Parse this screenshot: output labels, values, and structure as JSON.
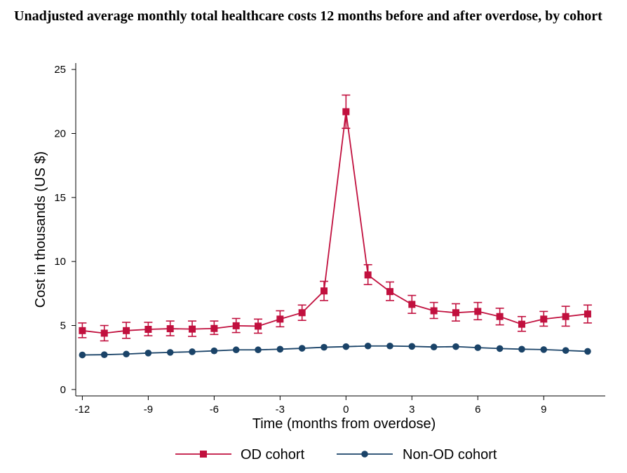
{
  "title": "Unadjusted average monthly total healthcare costs 12 months before and after overdose, by cohort",
  "chart_data": {
    "type": "line",
    "xlabel": "Time (months from overdose)",
    "ylabel": "Cost in thousands (US $)",
    "x": [
      -12,
      -11,
      -10,
      -9,
      -8,
      -7,
      -6,
      -5,
      -4,
      -3,
      -2,
      -1,
      0,
      1,
      2,
      3,
      4,
      5,
      6,
      7,
      8,
      9,
      10,
      11
    ],
    "xticks": [
      -12,
      -9,
      -6,
      -3,
      0,
      3,
      6,
      9
    ],
    "xtick_labels": [
      "-12",
      "-9",
      "-6",
      "-3",
      "0",
      "3",
      "6",
      "9"
    ],
    "xlim": [
      -12.3,
      11.8
    ],
    "yticks": [
      0,
      5,
      10,
      15,
      20,
      25
    ],
    "ytick_labels": [
      "0",
      "5",
      "10",
      "15",
      "20",
      "25"
    ],
    "ylim": [
      -0.5,
      25.5
    ],
    "grid": false,
    "legend_position": "bottom",
    "series": [
      {
        "name": "OD cohort",
        "color": "#c1103e",
        "marker": "square",
        "values": [
          4.6,
          4.4,
          4.6,
          4.7,
          4.75,
          4.72,
          4.77,
          4.98,
          4.95,
          5.5,
          6.0,
          7.7,
          21.7,
          8.95,
          7.65,
          6.65,
          6.15,
          6.0,
          6.1,
          5.7,
          5.1,
          5.5,
          5.7,
          5.9
        ],
        "ci_low": [
          4.05,
          3.8,
          4.0,
          4.2,
          4.2,
          4.15,
          4.3,
          4.45,
          4.4,
          4.9,
          5.4,
          6.95,
          20.4,
          8.2,
          6.95,
          5.95,
          5.55,
          5.35,
          5.45,
          5.05,
          4.55,
          4.95,
          4.95,
          5.2
        ],
        "ci_high": [
          5.2,
          5.0,
          5.25,
          5.25,
          5.35,
          5.35,
          5.35,
          5.55,
          5.5,
          6.15,
          6.6,
          8.45,
          23.0,
          9.75,
          8.4,
          7.35,
          6.8,
          6.7,
          6.8,
          6.35,
          5.7,
          6.1,
          6.5,
          6.6
        ]
      },
      {
        "name": "Non-OD cohort",
        "color": "#1a4368",
        "marker": "circle",
        "values": [
          2.7,
          2.72,
          2.77,
          2.85,
          2.9,
          2.95,
          3.02,
          3.1,
          3.1,
          3.15,
          3.22,
          3.3,
          3.35,
          3.4,
          3.4,
          3.37,
          3.32,
          3.35,
          3.27,
          3.2,
          3.15,
          3.12,
          3.05,
          2.98
        ]
      }
    ]
  }
}
